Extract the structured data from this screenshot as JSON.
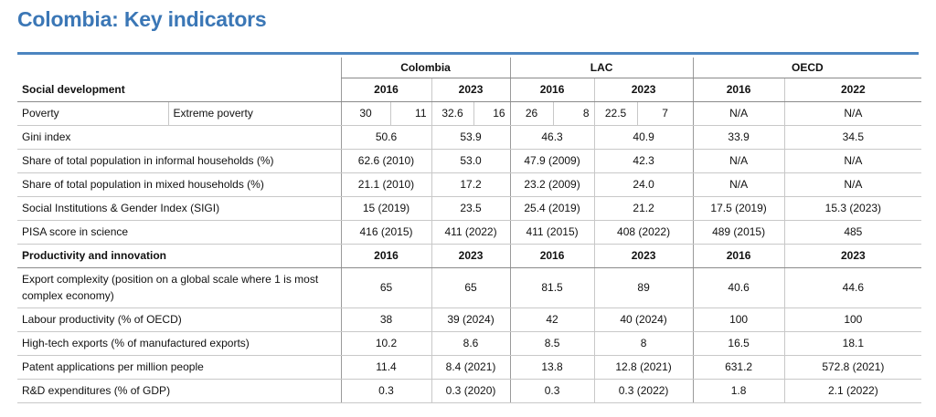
{
  "title": "Colombia: Key indicators",
  "groups": [
    "Colombia",
    "LAC",
    "OECD"
  ],
  "social": {
    "heading": "Social development",
    "years": [
      "2016",
      "2023",
      "2016",
      "2023",
      "2016",
      "2022"
    ],
    "poverty": {
      "label": "Poverty",
      "sublabel": "Extreme poverty",
      "col_2016_a": "30",
      "col_2016_b": "11",
      "col_2023_a": "32.6",
      "col_2023_b": "16",
      "lac_2016_a": "26",
      "lac_2016_b": "8",
      "lac_2023_a": "22.5",
      "lac_2023_b": "7",
      "oecd_2016": "N/A",
      "oecd_2022": "N/A"
    },
    "rows": [
      {
        "label": "Gini index",
        "v": [
          "50.6",
          "53.9",
          "46.3",
          "40.9",
          "33.9",
          "34.5"
        ]
      },
      {
        "label": "Share of total population in informal households (%)",
        "v": [
          "62.6 (2010)",
          "53.0",
          "47.9 (2009)",
          "42.3",
          "N/A",
          "N/A"
        ]
      },
      {
        "label": "Share of total population in mixed households (%)",
        "v": [
          "21.1 (2010)",
          "17.2",
          "23.2 (2009)",
          "24.0",
          "N/A",
          "N/A"
        ]
      },
      {
        "label": "Social Institutions & Gender Index (SIGI)",
        "v": [
          "15 (2019)",
          "23.5",
          "25.4 (2019)",
          "21.2",
          "17.5 (2019)",
          "15.3 (2023)"
        ]
      },
      {
        "label": "PISA score in science",
        "v": [
          "416 (2015)",
          "411 (2022)",
          "411 (2015)",
          "408 (2022)",
          "489 (2015)",
          "485"
        ]
      }
    ]
  },
  "productivity": {
    "heading": "Productivity and innovation",
    "years": [
      "2016",
      "2023",
      "2016",
      "2023",
      "2016",
      "2023"
    ],
    "rows": [
      {
        "label": "Export complexity (position on a global scale where 1 is most complex economy)",
        "v": [
          "65",
          "65",
          "81.5",
          "89",
          "40.6",
          "44.6"
        ]
      },
      {
        "label": "Labour productivity (% of OECD)",
        "v": [
          "38",
          "39 (2024)",
          "42",
          "40 (2024)",
          "100",
          "100"
        ]
      },
      {
        "label": "High-tech exports (% of manufactured exports)",
        "v": [
          "10.2",
          "8.6",
          "8.5",
          "8",
          "16.5",
          "18.1"
        ]
      },
      {
        "label": "Patent applications per million people",
        "v": [
          "11.4",
          "8.4 (2021)",
          "13.8",
          "12.8 (2021)",
          "631.2",
          "572.8 (2021)"
        ]
      },
      {
        "label": "R&D expenditures (% of GDP)",
        "v": [
          "0.3",
          "0.3 (2020)",
          "0.3",
          "0.3 (2022)",
          "1.8",
          "2.1 (2022)"
        ]
      }
    ]
  }
}
